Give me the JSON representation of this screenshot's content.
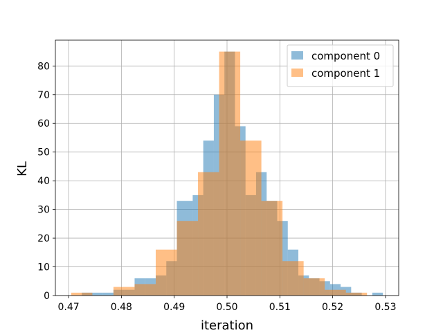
{
  "chart_data": {
    "type": "bar",
    "subtype": "overlapping-histogram",
    "xlabel": "iteration",
    "ylabel": "KL",
    "xlim": [
      0.4675,
      0.5325
    ],
    "ylim": [
      0,
      89
    ],
    "xticks": [
      0.47,
      0.48,
      0.49,
      0.5,
      0.51,
      0.52,
      0.53
    ],
    "xtick_labels": [
      "0.47",
      "0.48",
      "0.49",
      "0.50",
      "0.51",
      "0.52",
      "0.53"
    ],
    "yticks": [
      0,
      10,
      20,
      30,
      40,
      50,
      60,
      70,
      80
    ],
    "ytick_labels": [
      "0",
      "10",
      "20",
      "30",
      "40",
      "50",
      "60",
      "70",
      "80"
    ],
    "grid": true,
    "legend_position": "top-right",
    "series": [
      {
        "name": "component 0",
        "color": "#1f77b4",
        "opacity": 0.5,
        "bins": [
          {
            "x0": 0.473,
            "x1": 0.476,
            "value": 1
          },
          {
            "x0": 0.476,
            "x1": 0.4795,
            "value": 1
          },
          {
            "x0": 0.4795,
            "x1": 0.4825,
            "value": 2
          },
          {
            "x0": 0.4825,
            "x1": 0.4855,
            "value": 6
          },
          {
            "x0": 0.4855,
            "x1": 0.489,
            "value": 7
          },
          {
            "x0": 0.489,
            "x1": 0.492,
            "value": 12
          },
          {
            "x0": 0.492,
            "x1": 0.495,
            "value": 33
          },
          {
            "x0": 0.495,
            "x1": 0.4985,
            "value": 54
          },
          {
            "x0": 0.4985,
            "x1": 0.5015,
            "value": 85
          },
          {
            "x0": 0.5015,
            "x1": 0.5045,
            "value": 59
          },
          {
            "x0": 0.5045,
            "x1": 0.508,
            "value": 43
          },
          {
            "x0": 0.508,
            "x1": 0.511,
            "value": 33
          },
          {
            "x0": 0.511,
            "x1": 0.514,
            "value": 16
          },
          {
            "x0": 0.514,
            "x1": 0.5175,
            "value": 7
          },
          {
            "x0": 0.5175,
            "x1": 0.5205,
            "value": 4
          },
          {
            "x0": 0.5205,
            "x1": 0.5235,
            "value": 3
          },
          {
            "x0": 0.5235,
            "x1": 0.5265,
            "value": 1
          },
          {
            "x0": 0.5265,
            "x1": 0.5295,
            "value": 1
          }
        ]
      },
      {
        "name": "component 1",
        "color": "#ff7f0e",
        "opacity": 0.5,
        "bins": [
          {
            "x0": 0.4705,
            "x1": 0.4745,
            "value": 1
          },
          {
            "x0": 0.4745,
            "x1": 0.4785,
            "value": 0
          },
          {
            "x0": 0.4785,
            "x1": 0.4825,
            "value": 3
          },
          {
            "x0": 0.4825,
            "x1": 0.4865,
            "value": 4
          },
          {
            "x0": 0.4865,
            "x1": 0.4905,
            "value": 16
          },
          {
            "x0": 0.4905,
            "x1": 0.4945,
            "value": 26
          },
          {
            "x0": 0.4945,
            "x1": 0.4985,
            "value": 43
          },
          {
            "x0": 0.4985,
            "x1": 0.5025,
            "value": 85
          },
          {
            "x0": 0.5025,
            "x1": 0.5065,
            "value": 54
          },
          {
            "x0": 0.5065,
            "x1": 0.5105,
            "value": 33
          },
          {
            "x0": 0.5105,
            "x1": 0.5145,
            "value": 12
          },
          {
            "x0": 0.5145,
            "x1": 0.5185,
            "value": 6
          },
          {
            "x0": 0.5185,
            "x1": 0.5225,
            "value": 2
          },
          {
            "x0": 0.5225,
            "x1": 0.5265,
            "value": 1
          },
          {
            "x0": 0.5265,
            "x1": 0.5305,
            "value": 0
          }
        ]
      }
    ],
    "y_upper_extra": {
      "component 0": [
        {
          "x0": 0.4725,
          "x1": 0.4765,
          "value": 1
        },
        {
          "x0": 0.4765,
          "x1": 0.4785,
          "value": 1
        },
        {
          "x0": 0.4785,
          "x1": 0.4805,
          "value": 2
        },
        {
          "x0": 0.4805,
          "x1": 0.4825,
          "value": 2
        },
        {
          "x0": 0.4825,
          "x1": 0.4845,
          "value": 6
        },
        {
          "x0": 0.4845,
          "x1": 0.4865,
          "value": 6
        },
        {
          "x0": 0.4865,
          "x1": 0.4885,
          "value": 7
        },
        {
          "x0": 0.4885,
          "x1": 0.4905,
          "value": 12
        },
        {
          "x0": 0.4905,
          "x1": 0.4935,
          "value": 33
        },
        {
          "x0": 0.4935,
          "x1": 0.4955,
          "value": 35
        },
        {
          "x0": 0.4955,
          "x1": 0.4975,
          "value": 54
        },
        {
          "x0": 0.4975,
          "x1": 0.4995,
          "value": 70
        },
        {
          "x0": 0.4995,
          "x1": 0.5015,
          "value": 85
        },
        {
          "x0": 0.5015,
          "x1": 0.5035,
          "value": 59
        },
        {
          "x0": 0.5035,
          "x1": 0.5055,
          "value": 35
        },
        {
          "x0": 0.5055,
          "x1": 0.5075,
          "value": 43
        },
        {
          "x0": 0.5075,
          "x1": 0.5095,
          "value": 33
        },
        {
          "x0": 0.5095,
          "x1": 0.5115,
          "value": 26
        },
        {
          "x0": 0.5115,
          "x1": 0.5135,
          "value": 16
        },
        {
          "x0": 0.5135,
          "x1": 0.5155,
          "value": 7
        },
        {
          "x0": 0.5155,
          "x1": 0.5175,
          "value": 6
        },
        {
          "x0": 0.5175,
          "x1": 0.5195,
          "value": 5
        },
        {
          "x0": 0.5195,
          "x1": 0.5215,
          "value": 4
        },
        {
          "x0": 0.5215,
          "x1": 0.5235,
          "value": 3
        },
        {
          "x0": 0.5235,
          "x1": 0.5255,
          "value": 1
        },
        {
          "x0": 0.5275,
          "x1": 0.5295,
          "value": 1
        }
      ]
    }
  }
}
